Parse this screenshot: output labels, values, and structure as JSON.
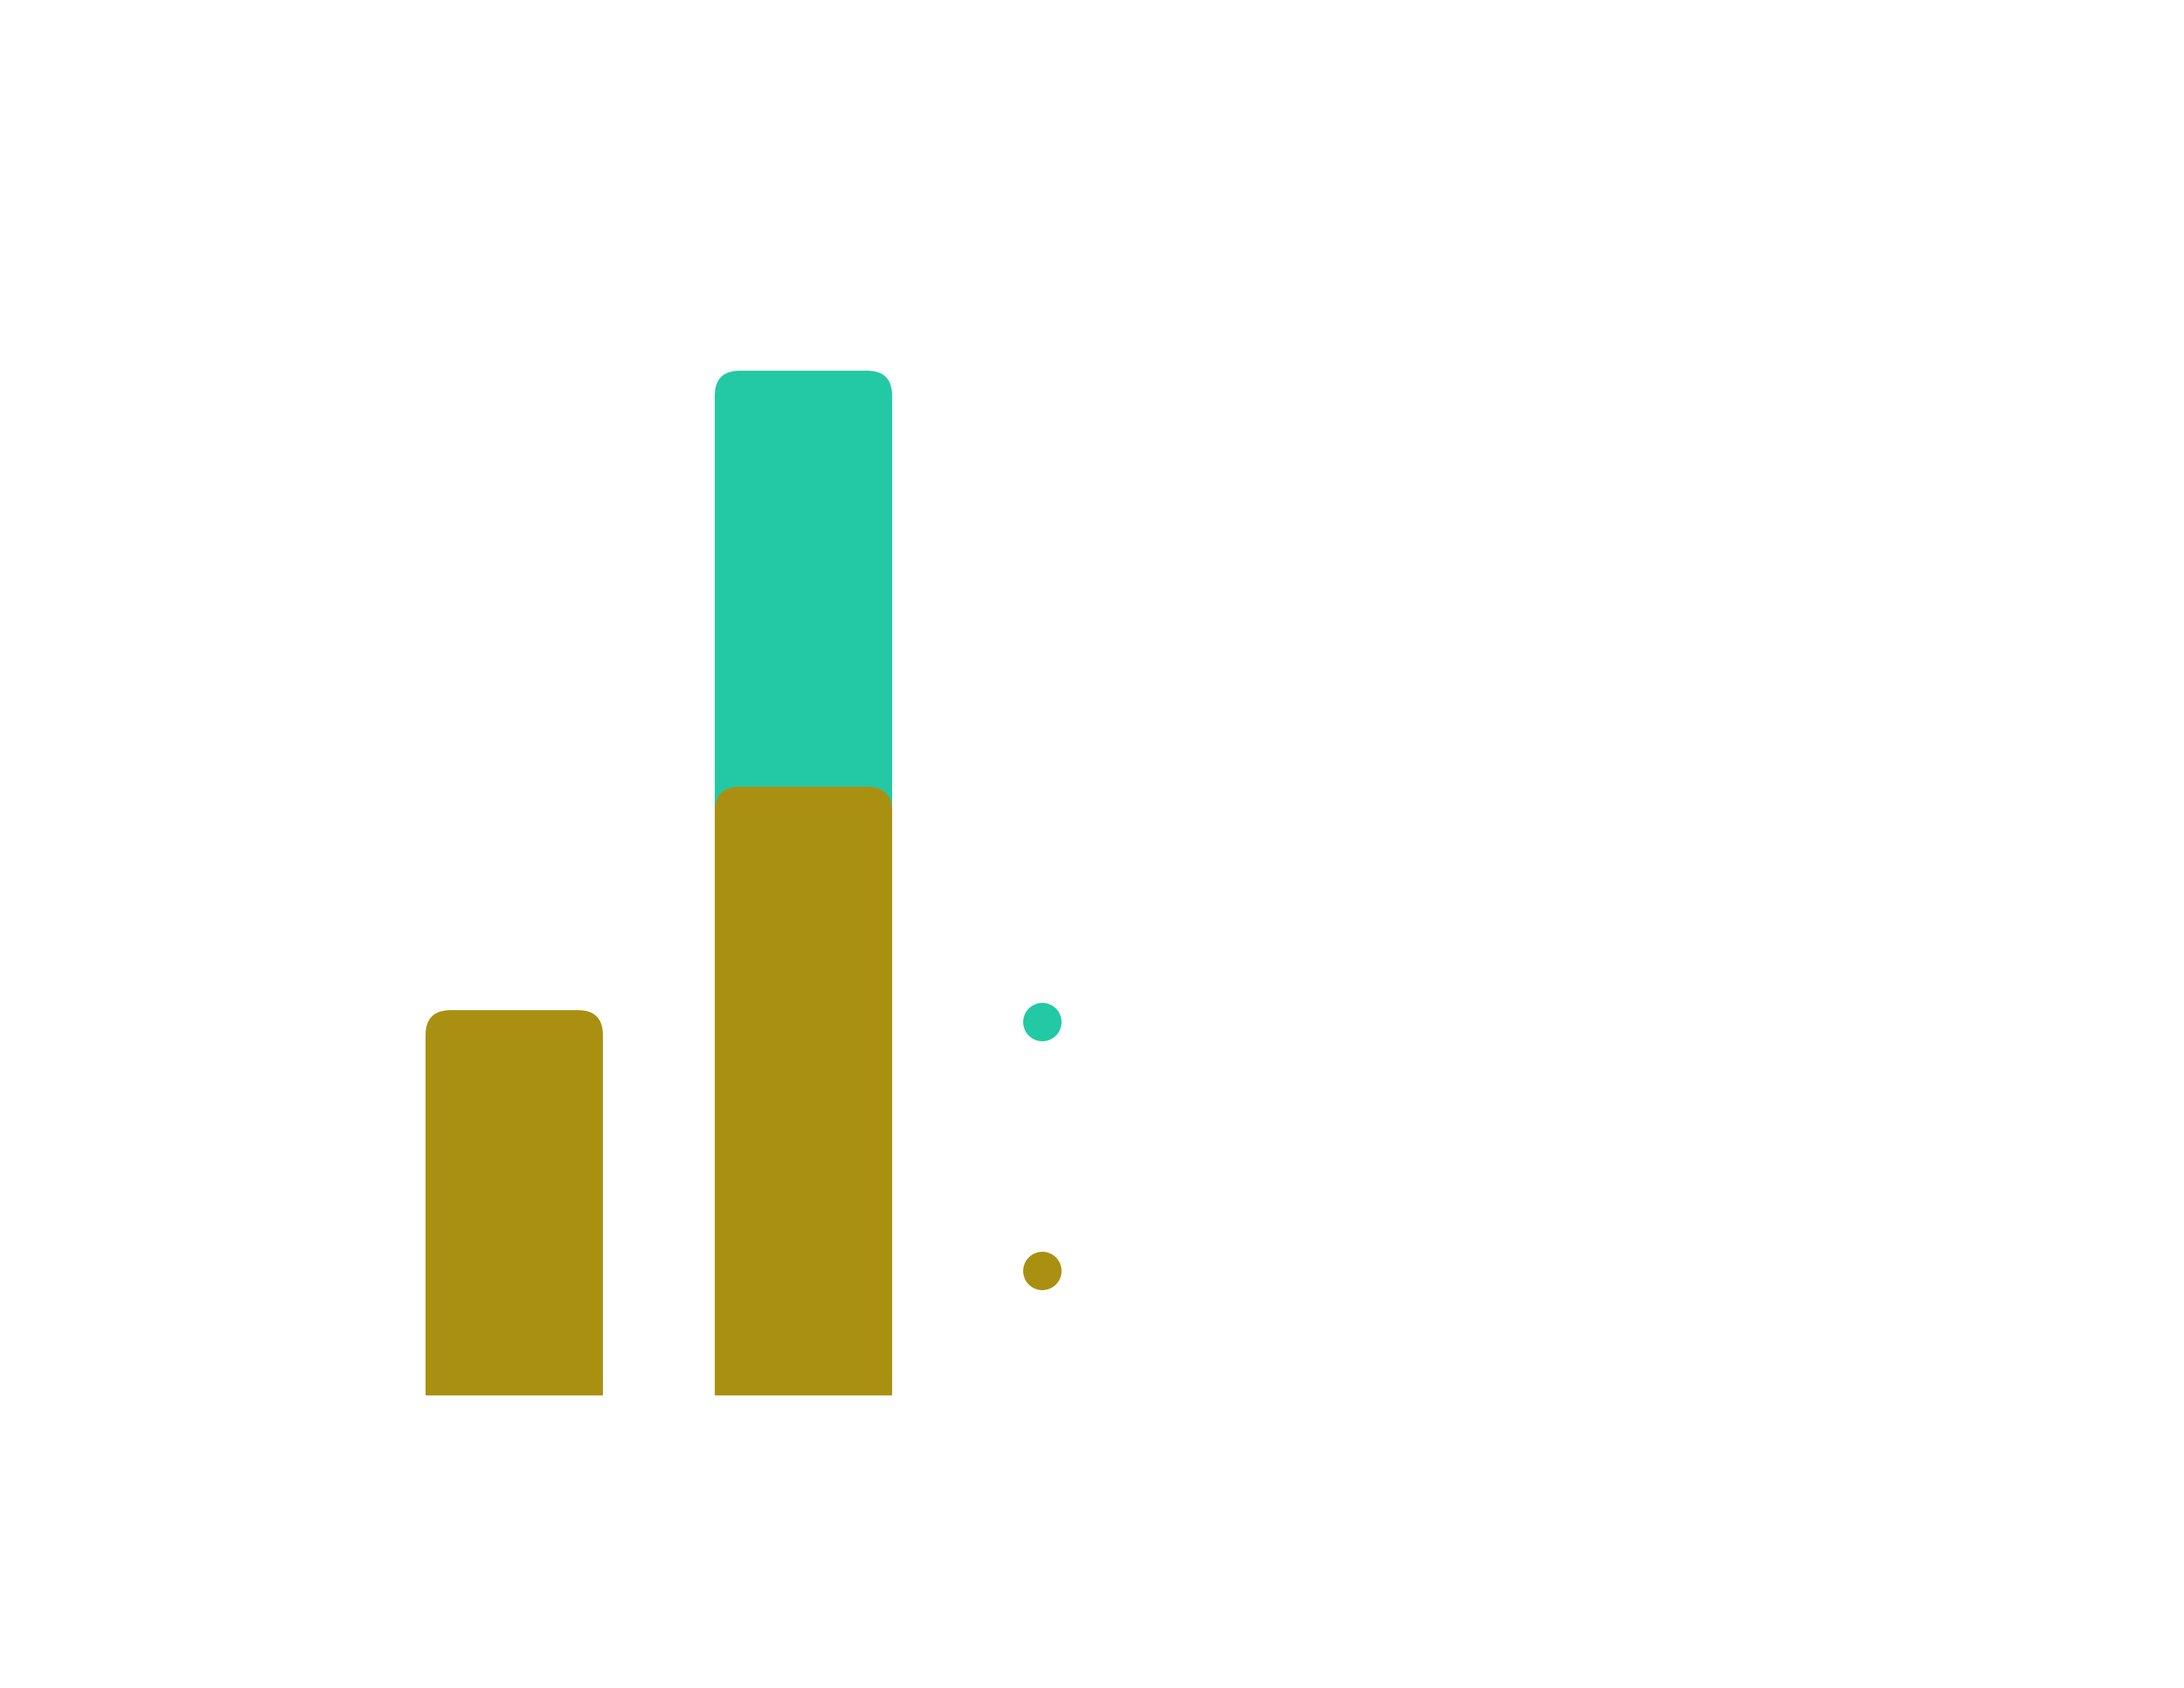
{
  "chart_data": {
    "type": "bar",
    "stacked": true,
    "title": "",
    "xlabel": "",
    "ylabel": "",
    "categories": [
      "",
      ""
    ],
    "ylim": [
      0,
      5
    ],
    "grid": false,
    "legend_position": "right",
    "series": [
      {
        "color": "#AA9011",
        "values": [
          1.88,
          2.97
        ]
      },
      {
        "color": "#23C9A5",
        "values": [
          0,
          2.03
        ]
      }
    ]
  }
}
